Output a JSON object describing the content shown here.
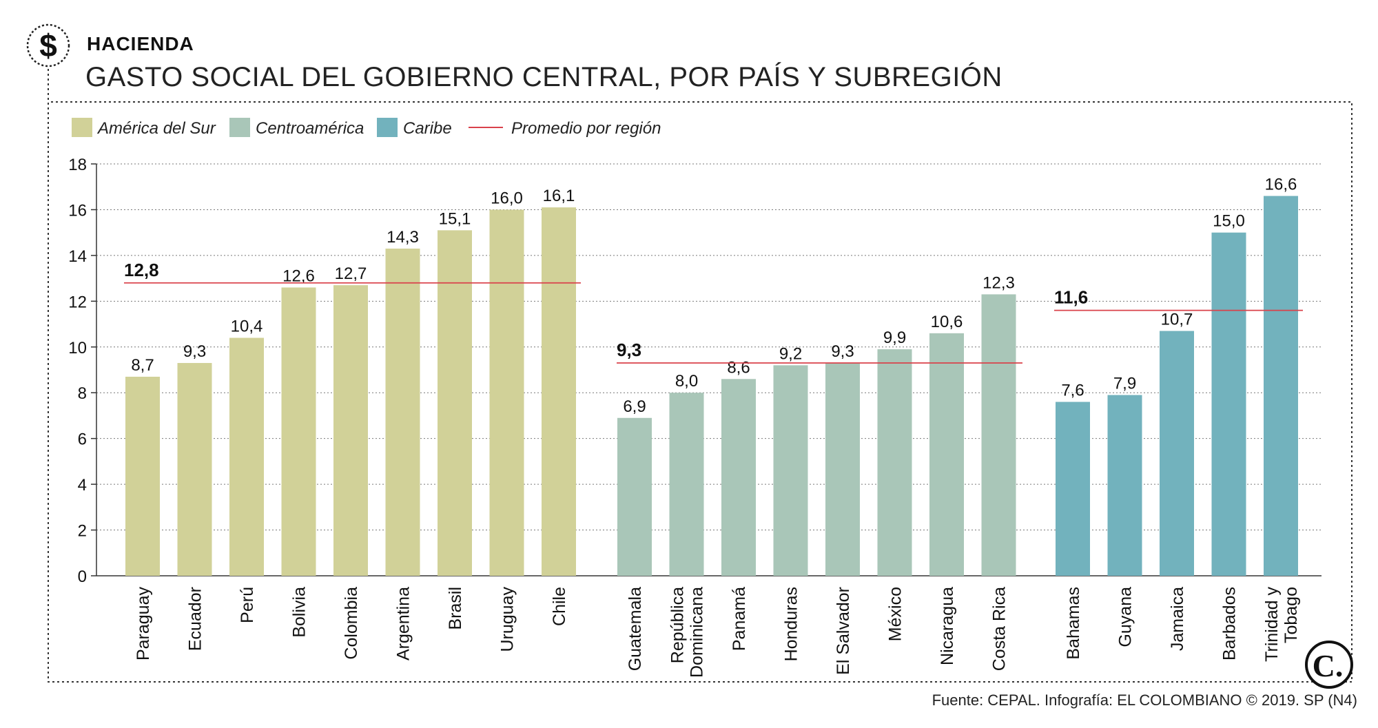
{
  "header": {
    "section": "HACIENDA",
    "title": "GASTO SOCIAL DEL GOBIERNO CENTRAL, POR PAÍS Y SUBREGIÓN",
    "icon": "dollar-sign-icon"
  },
  "footer": {
    "source": "Fuente: CEPAL. Infografía: EL COLOMBIANO © 2019. SP (N4)",
    "logo_letter": "C."
  },
  "colors": {
    "america_del_sur": "#d1d198",
    "centroamerica": "#a9c6b8",
    "caribe": "#72b2bd",
    "promedio": "#d9414a"
  },
  "chart_data": {
    "type": "bar",
    "ylim": [
      0,
      18
    ],
    "yticks": [
      "0",
      "2",
      "4",
      "6",
      "8",
      "10",
      "12",
      "14",
      "16",
      "18"
    ],
    "grid": true,
    "legend_position": "top-left",
    "legend": [
      {
        "label": "América del Sur",
        "key": "america_del_sur"
      },
      {
        "label": "Centroamérica",
        "key": "centroamerica"
      },
      {
        "label": "Caribe",
        "key": "caribe"
      },
      {
        "label": "Promedio por región",
        "key": "promedio",
        "kind": "line"
      }
    ],
    "groups": [
      {
        "key": "america_del_sur",
        "average": 12.8,
        "average_label": "12,8",
        "categories": [
          {
            "name": [
              "Paraguay"
            ],
            "value": 8.7,
            "label": "8,7"
          },
          {
            "name": [
              "Ecuador"
            ],
            "value": 9.3,
            "label": "9,3"
          },
          {
            "name": [
              "Perú"
            ],
            "value": 10.4,
            "label": "10,4"
          },
          {
            "name": [
              "Bolivia"
            ],
            "value": 12.6,
            "label": "12,6"
          },
          {
            "name": [
              "Colombia"
            ],
            "value": 12.7,
            "label": "12,7"
          },
          {
            "name": [
              "Argentina"
            ],
            "value": 14.3,
            "label": "14,3"
          },
          {
            "name": [
              "Brasil"
            ],
            "value": 15.1,
            "label": "15,1"
          },
          {
            "name": [
              "Uruguay"
            ],
            "value": 16.0,
            "label": "16,0"
          },
          {
            "name": [
              "Chile"
            ],
            "value": 16.1,
            "label": "16,1"
          }
        ]
      },
      {
        "key": "centroamerica",
        "average": 9.3,
        "average_label": "9,3",
        "categories": [
          {
            "name": [
              "Guatemala"
            ],
            "value": 6.9,
            "label": "6,9"
          },
          {
            "name": [
              "República",
              "Dominicana"
            ],
            "value": 8.0,
            "label": "8,0"
          },
          {
            "name": [
              "Panamá"
            ],
            "value": 8.6,
            "label": "8,6"
          },
          {
            "name": [
              "Honduras"
            ],
            "value": 9.2,
            "label": "9,2"
          },
          {
            "name": [
              "El Salvador"
            ],
            "value": 9.3,
            "label": "9,3"
          },
          {
            "name": [
              "México"
            ],
            "value": 9.9,
            "label": "9,9"
          },
          {
            "name": [
              "Nicaragua"
            ],
            "value": 10.6,
            "label": "10,6"
          },
          {
            "name": [
              "Costa Rica"
            ],
            "value": 12.3,
            "label": "12,3"
          }
        ]
      },
      {
        "key": "caribe",
        "average": 11.6,
        "average_label": "11,6",
        "categories": [
          {
            "name": [
              "Bahamas"
            ],
            "value": 7.6,
            "label": "7,6"
          },
          {
            "name": [
              "Guyana"
            ],
            "value": 7.9,
            "label": "7,9"
          },
          {
            "name": [
              "Jamaica"
            ],
            "value": 10.7,
            "label": "10,7"
          },
          {
            "name": [
              "Barbados"
            ],
            "value": 15.0,
            "label": "15,0"
          },
          {
            "name": [
              "Trinidad y",
              "Tobago"
            ],
            "value": 16.6,
            "label": "16,6"
          }
        ]
      }
    ]
  }
}
